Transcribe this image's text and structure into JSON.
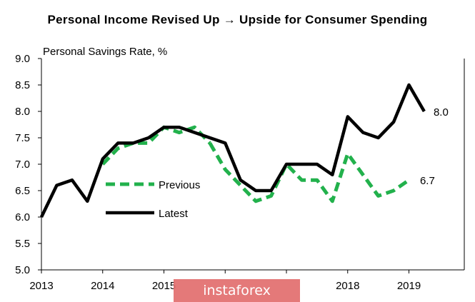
{
  "title": "Personal Income Revised Up → Upside for Consumer Spending",
  "watermark": "instaforex",
  "chart_data": {
    "type": "line",
    "title": "Personal Income Revised Up → Upside for Consumer Spending",
    "ylabel": "Personal Savings Rate, %",
    "xlabel": "",
    "ylim": [
      5.0,
      9.0
    ],
    "y_ticks": [
      "5.0",
      "5.5",
      "6.0",
      "6.5",
      "7.0",
      "7.5",
      "8.0",
      "8.5",
      "9.0"
    ],
    "x_ticks": [
      {
        "label": "2013",
        "x": 2013.0
      },
      {
        "label": "2014",
        "x": 2014.0
      },
      {
        "label": "2015",
        "x": 2015.0
      },
      {
        "label": "2018",
        "x": 2018.0
      },
      {
        "label": "2019",
        "x": 2019.0
      }
    ],
    "xlim": [
      2013.0,
      2019.95
    ],
    "grid": false,
    "legend_position": "center-left",
    "series": [
      {
        "name": "Previous",
        "style": "dashed",
        "color": "#22b14c",
        "x": [
          2015.75,
          2016.0,
          2016.25,
          2016.5,
          2016.75,
          2017.0,
          2017.25,
          2017.5,
          2017.75,
          2018.0,
          2018.25,
          2018.5,
          2018.75,
          2019.0
        ],
        "y": [
          7.4,
          6.9,
          6.6,
          6.3,
          6.4,
          7.0,
          6.7,
          6.7,
          6.3,
          7.2,
          6.8,
          6.4,
          6.5,
          6.7
        ],
        "end_label": "6.7"
      },
      {
        "name": "Latest",
        "style": "solid",
        "color": "#000000",
        "x": [
          2013.0,
          2013.25,
          2013.5,
          2013.75,
          2014.0,
          2014.25,
          2014.5,
          2014.75,
          2015.0,
          2015.25,
          2015.5,
          2015.75,
          2016.0,
          2016.25,
          2016.5,
          2016.75,
          2017.0,
          2017.25,
          2017.5,
          2017.75,
          2018.0,
          2018.25,
          2018.5,
          2018.75,
          2019.0,
          2019.25
        ],
        "y": [
          6.0,
          6.6,
          6.7,
          6.3,
          7.1,
          7.4,
          7.4,
          7.5,
          7.7,
          7.7,
          7.6,
          7.5,
          7.4,
          6.7,
          6.5,
          6.5,
          7.0,
          7.0,
          7.0,
          6.8,
          7.9,
          7.6,
          7.5,
          7.8,
          8.5,
          8.0
        ],
        "end_label": "8.0"
      }
    ],
    "previous_overlap_segment": {
      "x": [
        2014.0,
        2014.25,
        2014.5,
        2014.75,
        2015.0,
        2015.25,
        2015.5,
        2015.75
      ],
      "y": [
        7.0,
        7.3,
        7.4,
        7.4,
        7.7,
        7.6,
        7.7,
        7.4
      ]
    }
  }
}
